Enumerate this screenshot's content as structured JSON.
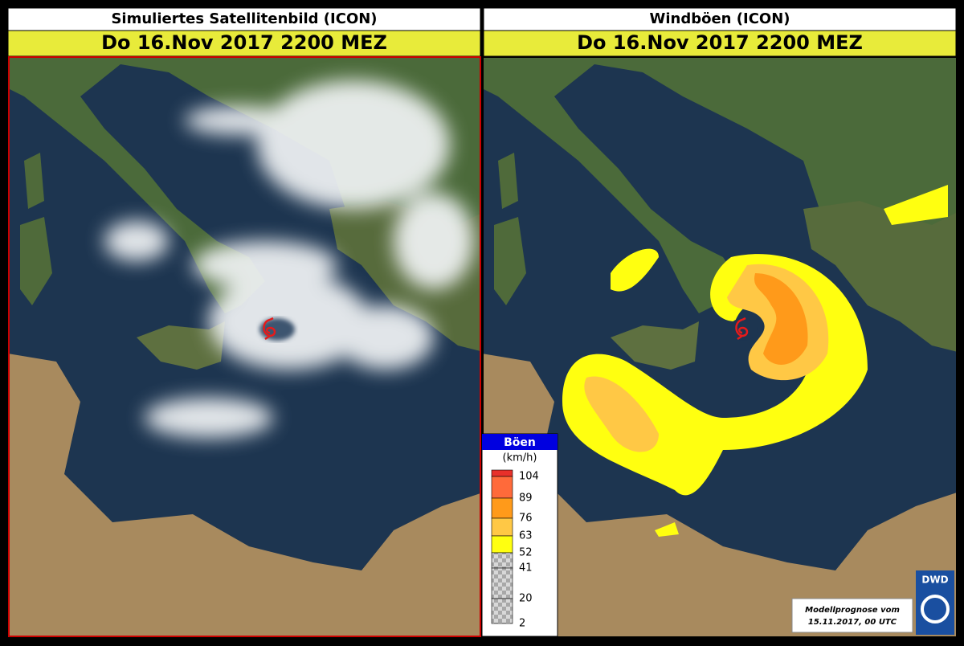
{
  "left_panel": {
    "title": "Simuliertes Satellitenbild (ICON)",
    "date": "Do 16.Nov 2017 2200 MEZ"
  },
  "right_panel": {
    "title": "Windböen (ICON)",
    "date": "Do 16.Nov 2017 2200 MEZ"
  },
  "legend": {
    "title": "Böen",
    "unit": "(km/h)",
    "ticks": [
      104,
      89,
      76,
      63,
      52,
      41,
      20,
      2
    ],
    "colors": [
      "#e8302a",
      "#ff6a3a",
      "#ff9a1a",
      "#ffc845",
      "#ffff10"
    ]
  },
  "footnote": {
    "line1": "Modellprognose vom",
    "line2": "15.11.2017, 00 UTC"
  },
  "logo": "DWD"
}
